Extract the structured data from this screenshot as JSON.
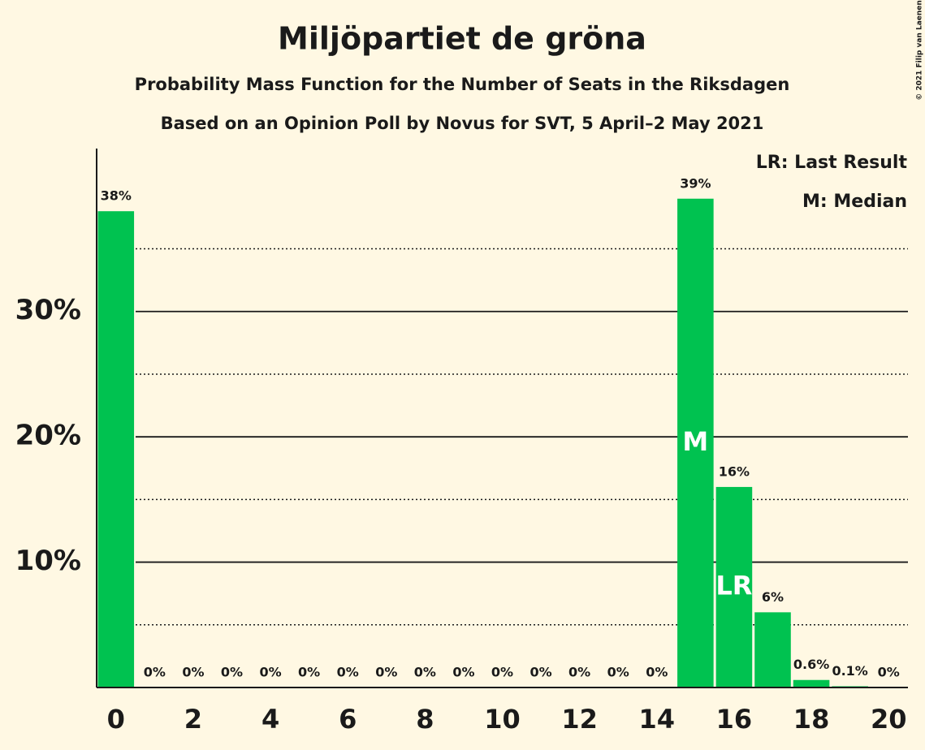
{
  "chart_data": {
    "type": "bar",
    "title": "Miljöpartiet de gröna",
    "subtitle": "Probability Mass Function for the Number of Seats in the Riksdagen",
    "subtitle2": "Based on an Opinion Poll by Novus for SVT, 5 April–2 May 2021",
    "x": [
      0,
      1,
      2,
      3,
      4,
      5,
      6,
      7,
      8,
      9,
      10,
      11,
      12,
      13,
      14,
      15,
      16,
      17,
      18,
      19,
      20
    ],
    "values": [
      38,
      0,
      0,
      0,
      0,
      0,
      0,
      0,
      0,
      0,
      0,
      0,
      0,
      0,
      0,
      39,
      16,
      6,
      0.6,
      0.1,
      0
    ],
    "value_labels": [
      "38%",
      "0%",
      "0%",
      "0%",
      "0%",
      "0%",
      "0%",
      "0%",
      "0%",
      "0%",
      "0%",
      "0%",
      "0%",
      "0%",
      "0%",
      "39%",
      "16%",
      "6%",
      "0.6%",
      "0.1%",
      "0%"
    ],
    "color": "#00c250",
    "xlim": [
      -0.5,
      20.5
    ],
    "xticks": [
      0,
      2,
      4,
      6,
      8,
      10,
      12,
      14,
      16,
      18,
      20
    ],
    "ylim": [
      0,
      43
    ],
    "yticks": [
      {
        "value": 10,
        "label": "10%"
      },
      {
        "value": 20,
        "label": "20%"
      },
      {
        "value": 30,
        "label": "30%"
      }
    ],
    "minor_yticks": [
      5,
      15,
      25,
      35
    ],
    "annotations": [
      {
        "x": 15,
        "text": "M"
      },
      {
        "x": 16,
        "text": "LR"
      }
    ],
    "legend": [
      "LR: Last Result",
      "M: Median"
    ],
    "copyright": "© 2021 Filip van Laenen"
  }
}
